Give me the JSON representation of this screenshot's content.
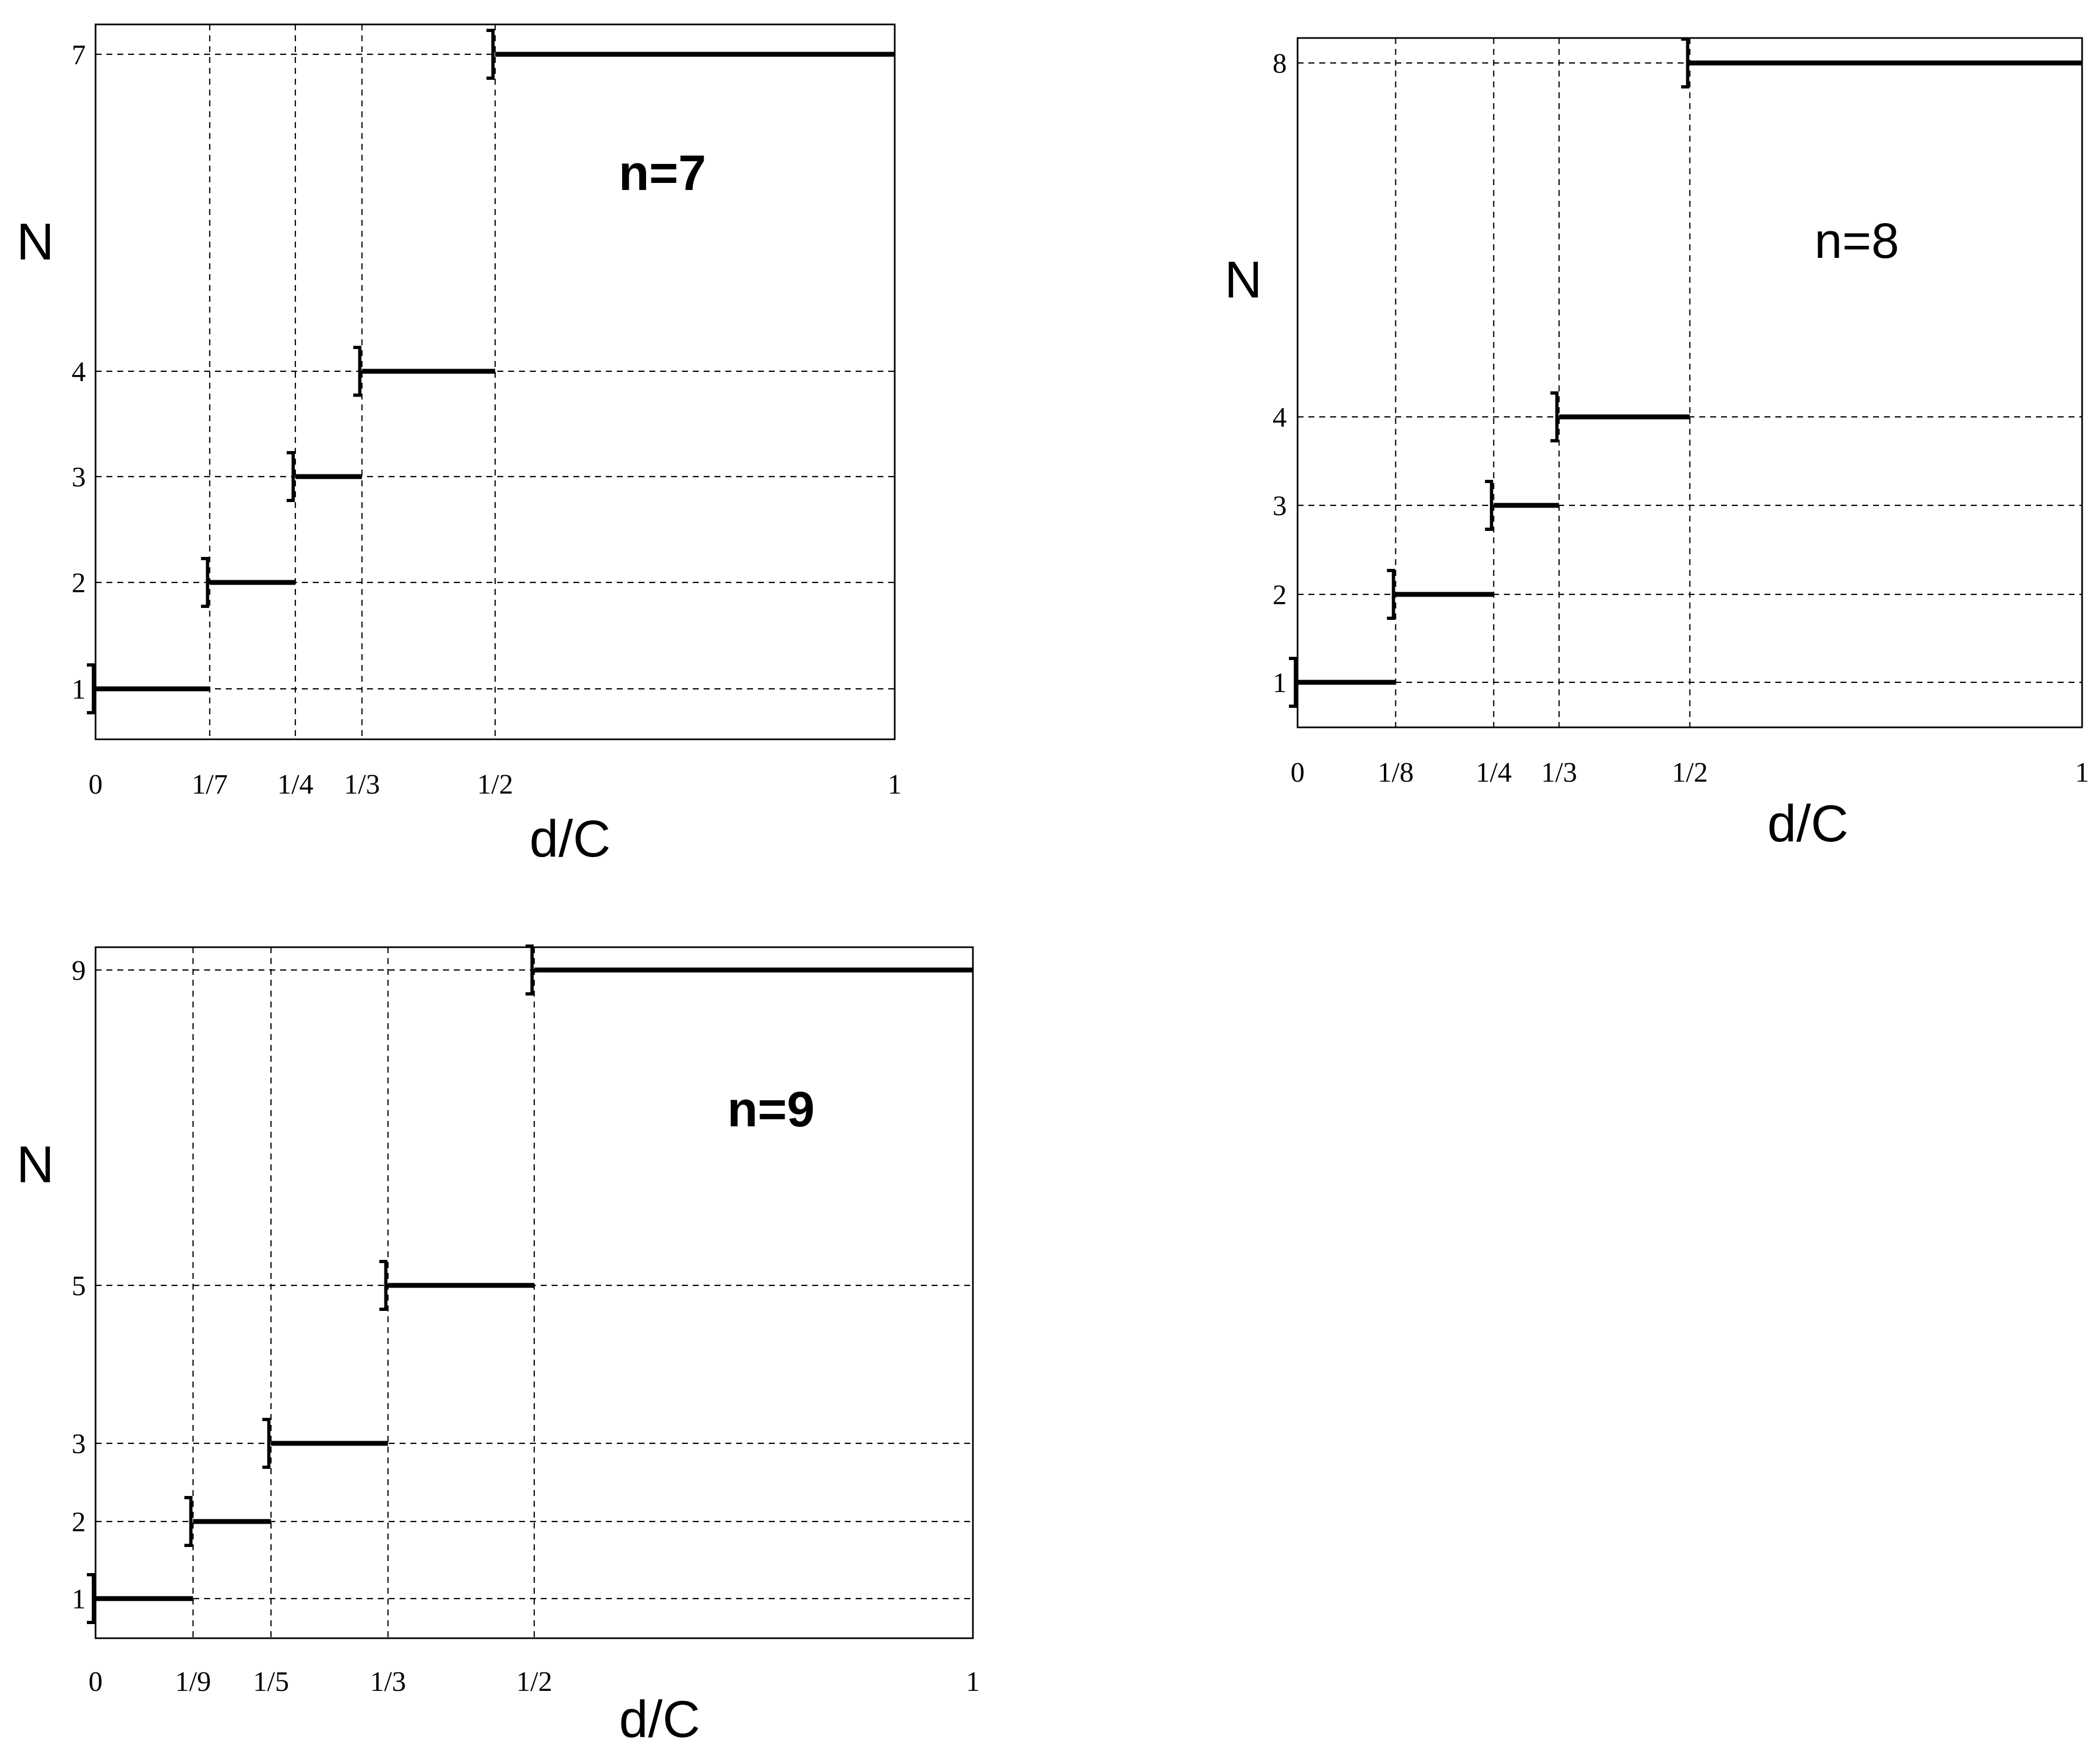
{
  "chart_data": [
    {
      "type": "line",
      "annotation": "n=7",
      "xlabel": "d/C",
      "ylabel": "N",
      "xlim": [
        0,
        1
      ],
      "grid": true,
      "x_tick_values": [
        0,
        0.142857,
        0.25,
        0.333333,
        0.5,
        1
      ],
      "x_tick_labels": [
        "0",
        "1/7",
        "1/4",
        "1/3",
        "1/2",
        "1"
      ],
      "y_tick_values": [
        1,
        2,
        3,
        4,
        7
      ],
      "y_tick_labels": [
        "1",
        "2",
        "3",
        "4",
        "7"
      ],
      "steps": [
        {
          "x_start": 0,
          "x_end": 0.142857,
          "y": 1
        },
        {
          "x_start": 0.142857,
          "x_end": 0.25,
          "y": 2
        },
        {
          "x_start": 0.25,
          "x_end": 0.333333,
          "y": 3
        },
        {
          "x_start": 0.333333,
          "x_end": 0.5,
          "y": 4
        },
        {
          "x_start": 0.5,
          "x_end": 1,
          "y": 7
        }
      ]
    },
    {
      "type": "line",
      "annotation": "n=8",
      "xlabel": "d/C",
      "ylabel": "N",
      "xlim": [
        0,
        1
      ],
      "grid": true,
      "x_tick_values": [
        0,
        0.125,
        0.25,
        0.333333,
        0.5,
        1
      ],
      "x_tick_labels": [
        "0",
        "1/8",
        "1/4",
        "1/3",
        "1/2",
        "1"
      ],
      "y_tick_values": [
        1,
        2,
        3,
        4,
        8
      ],
      "y_tick_labels": [
        "1",
        "2",
        "3",
        "4",
        "8"
      ],
      "steps": [
        {
          "x_start": 0,
          "x_end": 0.125,
          "y": 1
        },
        {
          "x_start": 0.125,
          "x_end": 0.25,
          "y": 2
        },
        {
          "x_start": 0.25,
          "x_end": 0.333333,
          "y": 3
        },
        {
          "x_start": 0.333333,
          "x_end": 0.5,
          "y": 4
        },
        {
          "x_start": 0.5,
          "x_end": 1,
          "y": 8
        }
      ]
    },
    {
      "type": "line",
      "annotation": "n=9",
      "xlabel": "d/C",
      "ylabel": "N",
      "xlim": [
        0,
        1
      ],
      "grid": true,
      "x_tick_values": [
        0,
        0.111111,
        0.2,
        0.333333,
        0.5,
        1
      ],
      "x_tick_labels": [
        "0",
        "1/9",
        "1/5",
        "1/3",
        "1/2",
        "1"
      ],
      "y_tick_values": [
        1,
        2,
        3,
        5,
        9
      ],
      "y_tick_labels": [
        "1",
        "2",
        "3",
        "5",
        "9"
      ],
      "steps": [
        {
          "x_start": 0,
          "x_end": 0.111111,
          "y": 1
        },
        {
          "x_start": 0.111111,
          "x_end": 0.2,
          "y": 2
        },
        {
          "x_start": 0.2,
          "x_end": 0.333333,
          "y": 3
        },
        {
          "x_start": 0.333333,
          "x_end": 0.5,
          "y": 5
        },
        {
          "x_start": 0.5,
          "x_end": 1,
          "y": 9
        }
      ]
    }
  ]
}
